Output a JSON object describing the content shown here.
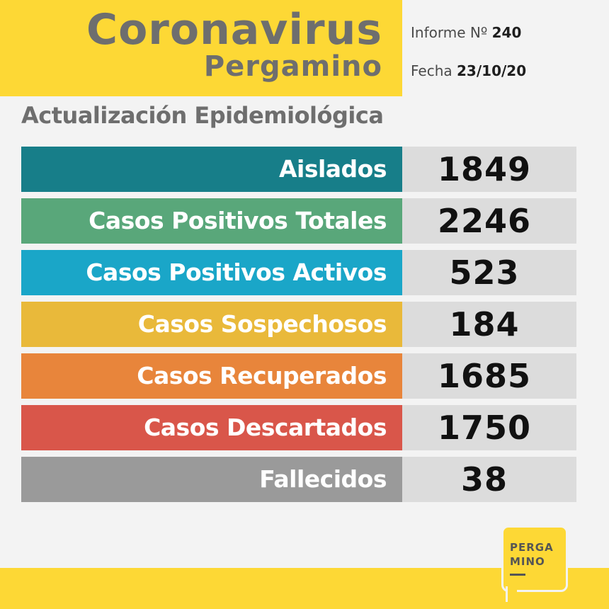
{
  "header": {
    "title": "Coronavirus",
    "subtitle": "Pergamino",
    "informe_label": "Informe Nº",
    "informe_number": "240",
    "fecha_label": "Fecha",
    "fecha_value": "23/10/20"
  },
  "section_title": "Actualización Epidemiológica",
  "rows": [
    {
      "label": "Aislados",
      "value": "1849",
      "color": "#177e89"
    },
    {
      "label": "Casos Positivos Totales",
      "value": "2246",
      "color": "#59a77a"
    },
    {
      "label": "Casos Positivos Activos",
      "value": "523",
      "color": "#1aa6c8"
    },
    {
      "label": "Casos Sospechosos",
      "value": "184",
      "color": "#e9b93a"
    },
    {
      "label": "Casos Recuperados",
      "value": "1685",
      "color": "#e8853b"
    },
    {
      "label": "Casos Descartados",
      "value": "1750",
      "color": "#d9564a"
    },
    {
      "label": "Fallecidos",
      "value": "38",
      "color": "#9a9a9a"
    }
  ],
  "logo": {
    "line1": "PERGA",
    "line2": "MINO"
  },
  "colors": {
    "brand_yellow": "#fdd835",
    "title_gray": "#6e6e6e",
    "value_bg": "#dcdcdc"
  }
}
